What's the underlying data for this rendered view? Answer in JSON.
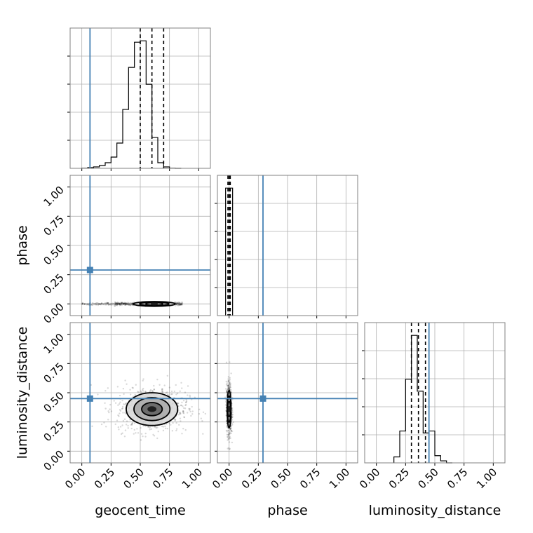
{
  "chart_data": {
    "type": "corner",
    "parameters": [
      {
        "name": "geocent_time",
        "label": "geocent_time",
        "truth": 0.07,
        "range": [
          -0.1,
          1.1
        ],
        "quantiles": [
          0.5,
          0.6,
          0.7
        ],
        "hist_edges": [
          0.0,
          0.05,
          0.1,
          0.15,
          0.2,
          0.25,
          0.3,
          0.35,
          0.4,
          0.45,
          0.5,
          0.55,
          0.6,
          0.65,
          0.7,
          0.75,
          0.8,
          0.85
        ],
        "hist_counts": [
          0.1,
          0.5,
          1.0,
          2.0,
          4.0,
          8.0,
          18.0,
          42.0,
          72.0,
          90.0,
          91.0,
          60.0,
          22.0,
          4.0,
          1.0,
          0.1,
          0.0
        ]
      },
      {
        "name": "phase",
        "label": "phase",
        "truth": 0.29,
        "range": [
          -0.1,
          1.1
        ],
        "quantiles": [
          -0.01,
          0.0,
          0.01
        ],
        "hist_edges": [
          -0.03,
          0.03
        ],
        "hist_counts": [
          1.0
        ]
      },
      {
        "name": "luminosity_distance",
        "label": "luminosity_distance",
        "truth": 0.45,
        "range": [
          -0.1,
          1.1
        ],
        "quantiles": [
          0.3,
          0.36,
          0.42
        ],
        "hist_edges": [
          0.15,
          0.2,
          0.25,
          0.3,
          0.35,
          0.4,
          0.45,
          0.5,
          0.55,
          0.6,
          0.65
        ],
        "hist_counts": [
          0.15,
          0.8,
          2.1,
          3.2,
          1.8,
          0.75,
          0.8,
          0.18,
          0.05,
          0.0
        ]
      }
    ],
    "ticks": [
      0.0,
      0.25,
      0.5,
      0.75,
      1.0
    ],
    "tick_labels": [
      "0.00",
      "0.25",
      "0.50",
      "0.75",
      "1.00"
    ],
    "axis_labels": {
      "x": [
        "geocent_time",
        "phase",
        "luminosity_distance"
      ],
      "y": [
        "phase",
        "luminosity_distance"
      ]
    },
    "pair_estimates": [
      {
        "x": "geocent_time",
        "y": "phase",
        "center": [
          0.62,
          0.0
        ],
        "spread": [
          0.09,
          0.01
        ],
        "extent": [
          0.0,
          0.88
        ]
      },
      {
        "x": "geocent_time",
        "y": "luminosity_distance",
        "center": [
          0.6,
          0.36
        ],
        "spread": [
          0.11,
          0.07
        ]
      },
      {
        "x": "phase",
        "y": "luminosity_distance",
        "center": [
          0.0,
          0.36
        ],
        "spread": [
          0.008,
          0.08
        ]
      }
    ],
    "grid": true,
    "colors": {
      "truth": "#4682b4",
      "hist": "#000000",
      "quantile": "#000000",
      "grid": "#b0b0b0",
      "spine": "#808080"
    }
  }
}
